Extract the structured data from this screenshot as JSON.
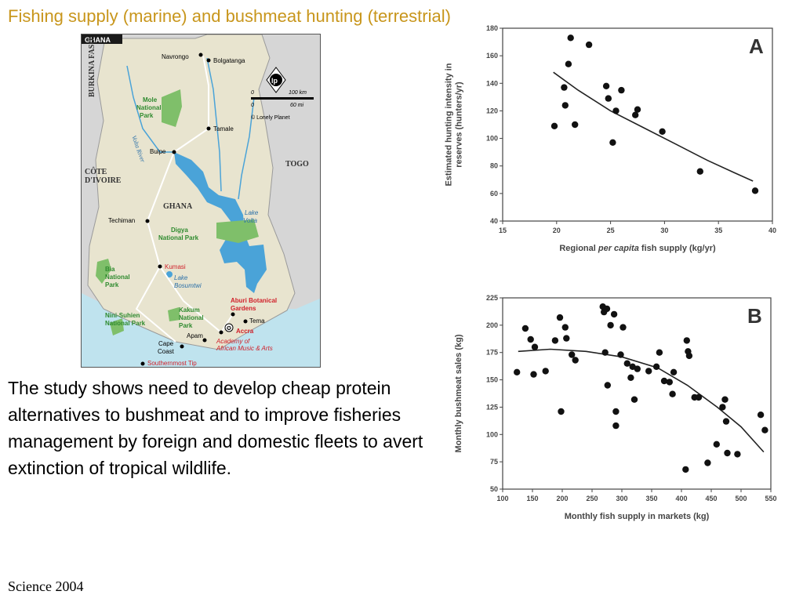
{
  "slide": {
    "title": "Fishing supply (marine) and bushmeat hunting (terrestrial)",
    "body_text": "The study shows need to develop cheap protein alternatives to bushmeat and to improve fisheries management by foreign and domestic fleets to avert extinction of tropical wildlife.",
    "citation": "Science 2004"
  },
  "map": {
    "label": "GHANA",
    "countries": [
      {
        "key": "burkina",
        "label": "BURKINA FASO"
      },
      {
        "key": "cote1",
        "label": "CÔTE"
      },
      {
        "key": "cote2",
        "label": "D'IVOIRE"
      },
      {
        "key": "togo",
        "label": "TOGO"
      },
      {
        "key": "ghana",
        "label": "GHANA"
      }
    ],
    "cities": [
      {
        "key": "navrongo",
        "name": "Navrongo"
      },
      {
        "key": "bolgatanga",
        "name": "Bolgatanga"
      },
      {
        "key": "tamale",
        "name": "Tamale"
      },
      {
        "key": "buipe",
        "name": "Buipe"
      },
      {
        "key": "techiman",
        "name": "Techiman"
      },
      {
        "key": "kumasi",
        "name": "Kumasi"
      },
      {
        "key": "tema",
        "name": "Tema"
      },
      {
        "key": "apam",
        "name": "Apam"
      },
      {
        "key": "cape1",
        "name": "Cape"
      },
      {
        "key": "cape2",
        "name": "Coast"
      },
      {
        "key": "accra",
        "name": "Accra"
      },
      {
        "key": "aburi1",
        "name": "Aburi Botanical"
      },
      {
        "key": "aburi2",
        "name": "Gardens"
      },
      {
        "key": "academy1",
        "name": "Academy of"
      },
      {
        "key": "academy2",
        "name": "African Music & Arts"
      },
      {
        "key": "southernmost",
        "name": "Southernmost Tip"
      }
    ],
    "parks": [
      {
        "key": "mole",
        "lines": [
          "Mole",
          "National",
          "Park"
        ]
      },
      {
        "key": "digya",
        "lines": [
          "Digya",
          "National Park"
        ]
      },
      {
        "key": "bia",
        "lines": [
          "Bia",
          "National",
          "Park"
        ]
      },
      {
        "key": "kakum",
        "lines": [
          "Kakum",
          "National",
          "Park"
        ]
      },
      {
        "key": "nini",
        "lines": [
          "Nini-Suhien",
          "National Park"
        ]
      }
    ],
    "water": [
      {
        "key": "volta_river",
        "name": "Volta River"
      },
      {
        "key": "lake_volta1",
        "name": "Lake"
      },
      {
        "key": "lake_volta2",
        "name": "Volta"
      },
      {
        "key": "bosumtwi1",
        "name": "Lake"
      },
      {
        "key": "bosumtwi2",
        "name": "Bosumtwi"
      }
    ],
    "scale": {
      "zero1": "0",
      "km": "100 km",
      "zero2": "0",
      "mi": "60 mi"
    },
    "credit": "© Lonely Planet",
    "compass": "lp",
    "colors": {
      "land": "#e8e4cf",
      "park": "#7fbf6a",
      "water": "#4aa3d8",
      "sea": "#bfe3ee",
      "neighbor": "#d6d6d6",
      "city_red": "#d0202a",
      "park_text": "#2e8a2e"
    }
  },
  "chart_data": [
    {
      "type": "scatter",
      "panel_label": "A",
      "xlabel_parts": [
        "Regional ",
        "per capita",
        " fish supply (kg/yr)"
      ],
      "ylabel_lines": [
        "Estimated hunting intensity in",
        "reserves (hunters/yr)"
      ],
      "xlim": [
        15,
        40
      ],
      "ylim": [
        40,
        180
      ],
      "xticks": [
        15,
        20,
        25,
        30,
        35,
        40
      ],
      "yticks": [
        40,
        60,
        80,
        100,
        120,
        140,
        160,
        180
      ],
      "xtick_labels": [
        "15",
        "20",
        "25",
        "30",
        "35",
        "40"
      ],
      "ytick_labels": [
        "40",
        "60",
        "80",
        "100",
        "120",
        "140",
        "160",
        "180"
      ],
      "points": [
        {
          "x": 19.8,
          "y": 109
        },
        {
          "x": 20.7,
          "y": 137
        },
        {
          "x": 20.8,
          "y": 124
        },
        {
          "x": 21.1,
          "y": 154
        },
        {
          "x": 21.3,
          "y": 173
        },
        {
          "x": 21.7,
          "y": 110
        },
        {
          "x": 23.0,
          "y": 168
        },
        {
          "x": 24.6,
          "y": 138
        },
        {
          "x": 24.8,
          "y": 129
        },
        {
          "x": 25.2,
          "y": 97
        },
        {
          "x": 25.5,
          "y": 120
        },
        {
          "x": 26.0,
          "y": 135
        },
        {
          "x": 27.3,
          "y": 117
        },
        {
          "x": 27.5,
          "y": 121
        },
        {
          "x": 29.8,
          "y": 105
        },
        {
          "x": 33.3,
          "y": 76
        },
        {
          "x": 38.4,
          "y": 62
        }
      ],
      "fit_line": {
        "x": [
          19.7,
          22,
          25,
          28,
          31,
          34,
          36.5,
          38.2
        ],
        "y": [
          148,
          135,
          120,
          108,
          96,
          84,
          75,
          69
        ]
      }
    },
    {
      "type": "scatter",
      "panel_label": "B",
      "xlabel_parts": [
        "Monthly fish supply in markets (kg)"
      ],
      "ylabel_lines": [
        "Monthly bushmeat sales (kg)"
      ],
      "xlim": [
        100,
        550
      ],
      "ylim": [
        50,
        225
      ],
      "xticks": [
        100,
        150,
        200,
        250,
        300,
        350,
        400,
        450,
        500,
        550
      ],
      "yticks": [
        50,
        75,
        100,
        125,
        150,
        175,
        200,
        225
      ],
      "xtick_labels": [
        "100",
        "150",
        "200",
        "250",
        "300",
        "350",
        "400",
        "450",
        "500",
        "550"
      ],
      "ytick_labels": [
        "50",
        "75",
        "100",
        "125",
        "150",
        "175",
        "200",
        "225"
      ],
      "points": [
        {
          "x": 124,
          "y": 157
        },
        {
          "x": 138,
          "y": 197
        },
        {
          "x": 147,
          "y": 187
        },
        {
          "x": 154,
          "y": 180
        },
        {
          "x": 152,
          "y": 155
        },
        {
          "x": 172,
          "y": 158
        },
        {
          "x": 188,
          "y": 186
        },
        {
          "x": 196,
          "y": 207
        },
        {
          "x": 198,
          "y": 121
        },
        {
          "x": 205,
          "y": 198
        },
        {
          "x": 207,
          "y": 188
        },
        {
          "x": 216,
          "y": 173
        },
        {
          "x": 222,
          "y": 168
        },
        {
          "x": 268,
          "y": 217
        },
        {
          "x": 270,
          "y": 212
        },
        {
          "x": 275,
          "y": 215
        },
        {
          "x": 272,
          "y": 175
        },
        {
          "x": 276,
          "y": 145
        },
        {
          "x": 281,
          "y": 200
        },
        {
          "x": 287,
          "y": 210
        },
        {
          "x": 290,
          "y": 121
        },
        {
          "x": 290,
          "y": 108
        },
        {
          "x": 298,
          "y": 173
        },
        {
          "x": 302,
          "y": 198
        },
        {
          "x": 309,
          "y": 165
        },
        {
          "x": 315,
          "y": 152
        },
        {
          "x": 318,
          "y": 162
        },
        {
          "x": 321,
          "y": 132
        },
        {
          "x": 326,
          "y": 160
        },
        {
          "x": 345,
          "y": 158
        },
        {
          "x": 358,
          "y": 162
        },
        {
          "x": 363,
          "y": 175
        },
        {
          "x": 371,
          "y": 149
        },
        {
          "x": 380,
          "y": 148
        },
        {
          "x": 385,
          "y": 137
        },
        {
          "x": 387,
          "y": 157
        },
        {
          "x": 407,
          "y": 68
        },
        {
          "x": 409,
          "y": 186
        },
        {
          "x": 411,
          "y": 176
        },
        {
          "x": 413,
          "y": 172
        },
        {
          "x": 422,
          "y": 134
        },
        {
          "x": 429,
          "y": 134
        },
        {
          "x": 444,
          "y": 74
        },
        {
          "x": 459,
          "y": 91
        },
        {
          "x": 469,
          "y": 125
        },
        {
          "x": 473,
          "y": 132
        },
        {
          "x": 475,
          "y": 112
        },
        {
          "x": 477,
          "y": 83
        },
        {
          "x": 494,
          "y": 82
        },
        {
          "x": 533,
          "y": 118
        },
        {
          "x": 540,
          "y": 104
        }
      ],
      "fit_line": {
        "x": [
          126,
          180,
          240,
          300,
          360,
          410,
          460,
          500,
          538
        ],
        "y": [
          176,
          178,
          176,
          171,
          161,
          145,
          125,
          107,
          84
        ]
      }
    }
  ]
}
